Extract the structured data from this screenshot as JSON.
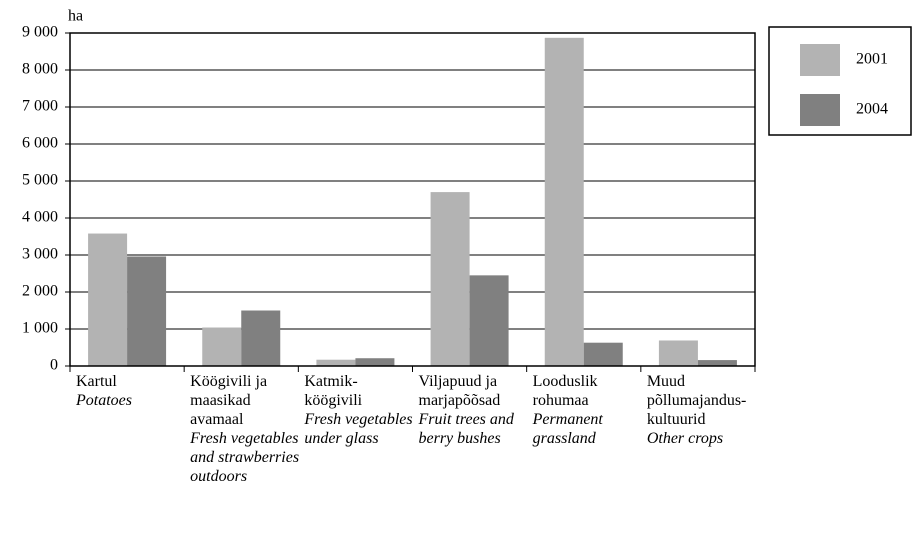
{
  "chart_data": {
    "type": "bar",
    "y_axis_label": "ha",
    "categories": [
      "Kartul",
      "Köögivili ja maasikad avamaal",
      "Katmik-köögivili",
      "Viljapuud ja marjapõõsad",
      "Looduslik rohumaa",
      "Muud põllumajandus-kultuurid"
    ],
    "categories_en": [
      "Potatoes",
      "Fresh vegetables and strawberries outdoors",
      "Fresh vegetables under glass",
      "Fruit trees and berry bushes",
      "Permanent grassland",
      "Other crops"
    ],
    "series": [
      {
        "name": "2001",
        "color": "#b3b3b3",
        "values": [
          3580,
          1040,
          170,
          4700,
          8870,
          690
        ]
      },
      {
        "name": "2004",
        "color": "#808080",
        "values": [
          2960,
          1500,
          210,
          2450,
          630,
          160
        ]
      }
    ],
    "ylim": [
      0,
      9000
    ],
    "yticks": [
      0,
      {
        "value": 1000,
        "label": "1 000"
      },
      {
        "value": 2000,
        "label": "2 000"
      },
      {
        "value": 3000,
        "label": "3 000"
      },
      {
        "value": 4000,
        "label": "4 000"
      },
      {
        "value": 5000,
        "label": "5 000"
      },
      {
        "value": 6000,
        "label": "6 000"
      },
      {
        "value": 7000,
        "label": "7 000"
      },
      {
        "value": 8000,
        "label": "8 000"
      },
      {
        "value": 9000,
        "label": "9 000"
      }
    ],
    "grid": true
  }
}
